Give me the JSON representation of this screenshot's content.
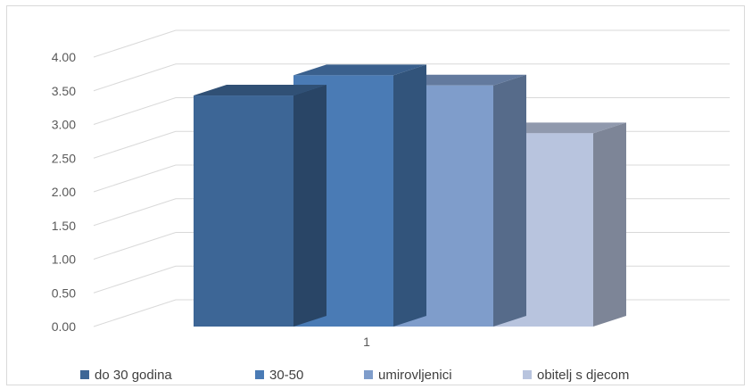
{
  "chart_data": {
    "type": "bar",
    "title": "",
    "xlabel": "",
    "ylabel": "",
    "categories": [
      "1"
    ],
    "ylim": [
      0,
      4
    ],
    "yticks": [
      "0.00",
      "0.50",
      "1.00",
      "1.50",
      "2.00",
      "2.50",
      "3.00",
      "3.50",
      "4.00"
    ],
    "grid": true,
    "legend_position": "bottom",
    "series": [
      {
        "name": "do 30 godina",
        "values": [
          3.43
        ],
        "color": "#3d6696"
      },
      {
        "name": "30-50",
        "values": [
          3.73
        ],
        "color": "#4a7bb5"
      },
      {
        "name": "umirovljenici",
        "values": [
          3.58
        ],
        "color": "#7f9dcb"
      },
      {
        "name": "obitelj s djecom",
        "values": [
          2.87
        ],
        "color": "#b8c4de"
      }
    ]
  }
}
